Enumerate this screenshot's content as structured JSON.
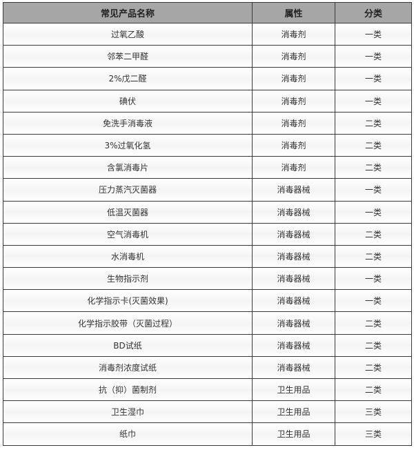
{
  "table": {
    "headers": [
      "常见产品名称",
      "属性",
      "分类"
    ],
    "rows": [
      [
        "过氧乙酸",
        "消毒剂",
        "一类"
      ],
      [
        "邻苯二甲醛",
        "消毒剂",
        "一类"
      ],
      [
        "2%戊二醛",
        "消毒剂",
        "一类"
      ],
      [
        "碘伏",
        "消毒剂",
        "一类"
      ],
      [
        "免洗手消毒液",
        "消毒剂",
        "二类"
      ],
      [
        "3%过氧化氢",
        "消毒剂",
        "二类"
      ],
      [
        "含氯消毒片",
        "消毒剂",
        "二类"
      ],
      [
        "压力蒸汽灭菌器",
        "消毒器械",
        "一类"
      ],
      [
        "低温灭菌器",
        "消毒器械",
        "一类"
      ],
      [
        "空气消毒机",
        "消毒器械",
        "二类"
      ],
      [
        "水消毒机",
        "消毒器械",
        "二类"
      ],
      [
        "生物指示剂",
        "消毒器械",
        "一类"
      ],
      [
        "化学指示卡(灭菌效果)",
        "消毒器械",
        "一类"
      ],
      [
        "化学指示胶带（灭菌过程）",
        "消毒器械",
        "二类"
      ],
      [
        "BD试纸",
        "消毒器械",
        "二类"
      ],
      [
        "消毒剂浓度试纸",
        "消毒器械",
        "二类"
      ],
      [
        "抗（抑）菌制剂",
        "卫生用品",
        "二类"
      ],
      [
        "卫生湿巾",
        "卫生用品",
        "三类"
      ],
      [
        "纸巾",
        "卫生用品",
        "三类"
      ]
    ]
  }
}
